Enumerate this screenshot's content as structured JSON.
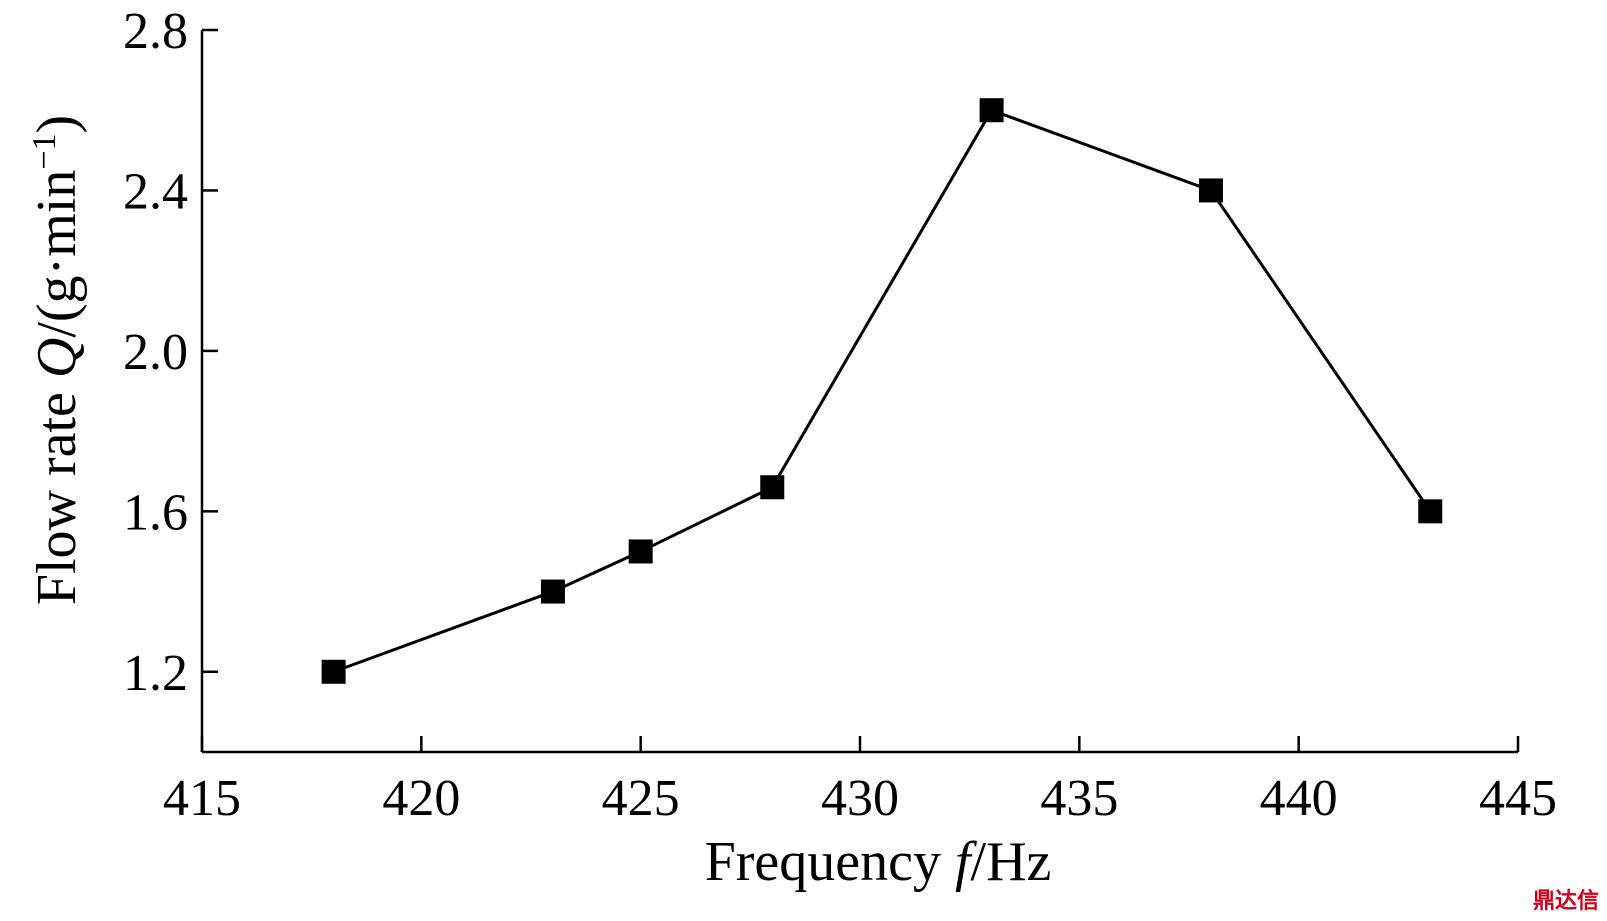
{
  "chart_data": {
    "type": "line",
    "title": "",
    "xlabel": {
      "prefix": "Frequency ",
      "var": "f",
      "suffix": "/Hz"
    },
    "ylabel": {
      "prefix": "Flow rate ",
      "var": "Q",
      "suffix": "/(g·min",
      "sup": "−1",
      "close": ")"
    },
    "xlim": [
      415,
      445
    ],
    "ylim": [
      1.0,
      2.8
    ],
    "xticks": [
      415,
      420,
      425,
      430,
      435,
      440,
      445
    ],
    "xtick_labels": [
      "415",
      "420",
      "425",
      "430",
      "435",
      "440",
      "445"
    ],
    "yticks": [
      1.2,
      1.6,
      2.0,
      2.4,
      2.8
    ],
    "ytick_labels": [
      "1.2",
      "1.6",
      "2.0",
      "2.4",
      "2.8"
    ],
    "grid": false,
    "series": [
      {
        "marker": "square",
        "color": "#000000",
        "x": [
          418,
          423,
          425,
          428,
          433,
          438,
          443
        ],
        "y": [
          1.2,
          1.4,
          1.5,
          1.66,
          2.6,
          2.4,
          1.6
        ]
      }
    ]
  }
}
